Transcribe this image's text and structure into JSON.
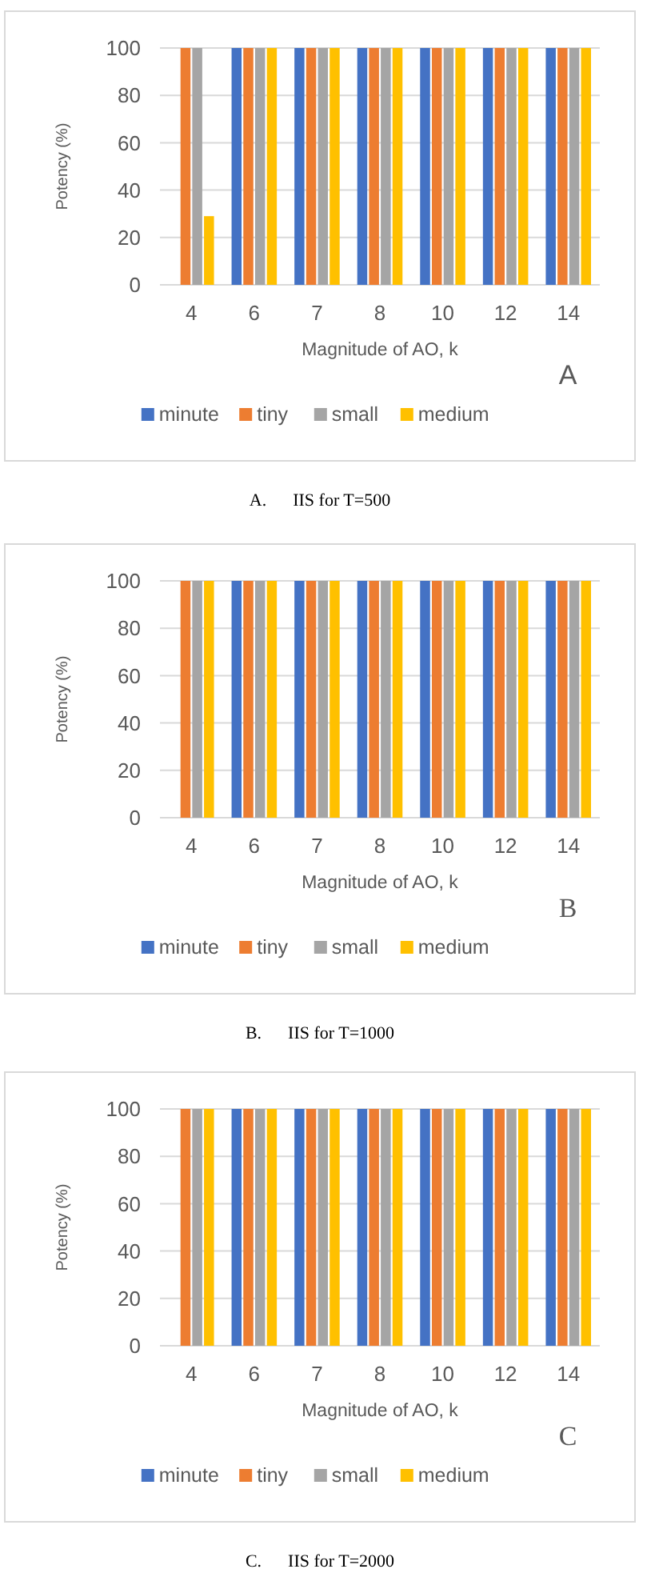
{
  "chart_data": [
    {
      "type": "bar",
      "xlabel": "Magnitude of AO, k",
      "ylabel": "Potency (%)",
      "categories": [
        "4",
        "6",
        "7",
        "8",
        "10",
        "12",
        "14"
      ],
      "ylim": [
        0,
        100
      ],
      "yticks": [
        0,
        20,
        40,
        60,
        80,
        100
      ],
      "grid": "y",
      "legend": "bottom",
      "annotations": [
        "A",
        "A.      IIS for T=500"
      ],
      "series": [
        {
          "name": "minute",
          "color": "#4472c4",
          "values": [
            0,
            100,
            100,
            100,
            100,
            100,
            100
          ]
        },
        {
          "name": "tiny",
          "color": "#ed7d31",
          "values": [
            100,
            100,
            100,
            100,
            100,
            100,
            100
          ]
        },
        {
          "name": "small",
          "color": "#a5a5a5",
          "values": [
            100,
            100,
            100,
            100,
            100,
            100,
            100
          ]
        },
        {
          "name": "medium",
          "color": "#ffc000",
          "values": [
            29,
            100,
            100,
            100,
            100,
            100,
            100
          ]
        }
      ]
    },
    {
      "type": "bar",
      "xlabel": "Magnitude of AO, k",
      "ylabel": "Potency (%)",
      "categories": [
        "4",
        "6",
        "7",
        "8",
        "10",
        "12",
        "14"
      ],
      "ylim": [
        0,
        100
      ],
      "yticks": [
        0,
        20,
        40,
        60,
        80,
        100
      ],
      "grid": "y",
      "legend": "bottom",
      "annotations": [
        "B",
        "B.      IIS for T=1000"
      ],
      "series": [
        {
          "name": "minute",
          "color": "#4472c4",
          "values": [
            0,
            100,
            100,
            100,
            100,
            100,
            100
          ]
        },
        {
          "name": "tiny",
          "color": "#ed7d31",
          "values": [
            100,
            100,
            100,
            100,
            100,
            100,
            100
          ]
        },
        {
          "name": "small",
          "color": "#a5a5a5",
          "values": [
            100,
            100,
            100,
            100,
            100,
            100,
            100
          ]
        },
        {
          "name": "medium",
          "color": "#ffc000",
          "values": [
            100,
            100,
            100,
            100,
            100,
            100,
            100
          ]
        }
      ]
    },
    {
      "type": "bar",
      "xlabel": "Magnitude of AO, k",
      "ylabel": "Potency (%)",
      "categories": [
        "4",
        "6",
        "7",
        "8",
        "10",
        "12",
        "14"
      ],
      "ylim": [
        0,
        100
      ],
      "yticks": [
        0,
        20,
        40,
        60,
        80,
        100
      ],
      "grid": "y",
      "legend": "bottom",
      "annotations": [
        "C",
        "C.      IIS for T=2000"
      ],
      "series": [
        {
          "name": "minute",
          "color": "#4472c4",
          "values": [
            0,
            100,
            100,
            100,
            100,
            100,
            100
          ]
        },
        {
          "name": "tiny",
          "color": "#ed7d31",
          "values": [
            100,
            100,
            100,
            100,
            100,
            100,
            100
          ]
        },
        {
          "name": "small",
          "color": "#a5a5a5",
          "values": [
            100,
            100,
            100,
            100,
            100,
            100,
            100
          ]
        },
        {
          "name": "medium",
          "color": "#ffc000",
          "values": [
            100,
            100,
            100,
            100,
            100,
            100,
            100
          ]
        }
      ]
    }
  ]
}
